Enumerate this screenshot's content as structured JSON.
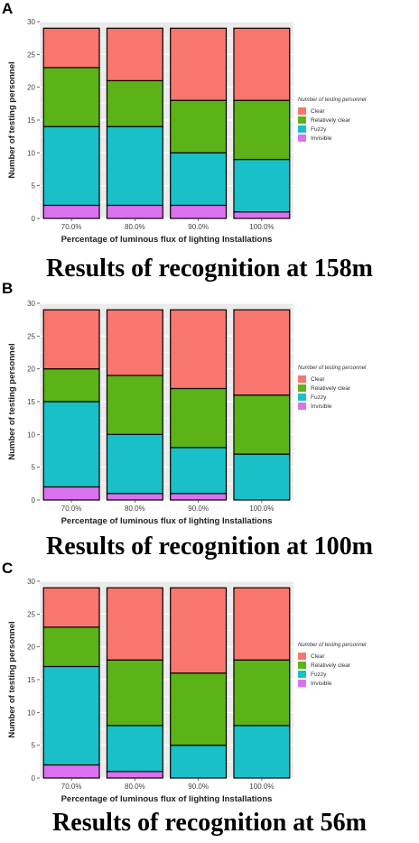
{
  "colors": {
    "Clear": "#f8766d",
    "Relatively clear": "#5bb318",
    "Fuzzy": "#19c0c8",
    "Invisible": "#dc71f0",
    "panel_bg": "#ebebeb",
    "grid": "#ffffff"
  },
  "chart_data": [
    {
      "type": "bar",
      "stacked": true,
      "panel_label": "A",
      "caption": "Results of recognition at 158m",
      "xlabel": "Percentage of luminous flux of lighting Installations",
      "ylabel": "Number of testing personnel",
      "legend_title": "Number of testing personnel",
      "legend_entries": [
        "Clear",
        "Relatively clear",
        "Fuzzy",
        "Invisible"
      ],
      "categories": [
        "70.0%",
        "80.0%",
        "90.0%",
        "100.0%"
      ],
      "yticks": [
        "0",
        "5",
        "10",
        "15",
        "20",
        "25",
        "30"
      ],
      "ylim": [
        0,
        30
      ],
      "series": [
        {
          "name": "Invisible",
          "values": [
            2,
            2,
            2,
            1
          ]
        },
        {
          "name": "Fuzzy",
          "values": [
            12,
            12,
            8,
            8
          ]
        },
        {
          "name": "Relatively clear",
          "values": [
            9,
            7,
            8,
            9
          ]
        },
        {
          "name": "Clear",
          "values": [
            6,
            8,
            11,
            11
          ]
        }
      ]
    },
    {
      "type": "bar",
      "stacked": true,
      "panel_label": "B",
      "caption": "Results of recognition at 100m",
      "xlabel": "Percentage of luminous flux of lighting Installations",
      "ylabel": "Number of testing personnel",
      "legend_title": "Number of testing personnel",
      "legend_entries": [
        "Clear",
        "Relatively clear",
        "Fuzzy",
        "Invisible"
      ],
      "categories": [
        "70.0%",
        "80.0%",
        "90.0%",
        "100.0%"
      ],
      "yticks": [
        "0",
        "5",
        "10",
        "15",
        "20",
        "25",
        "30"
      ],
      "ylim": [
        0,
        30
      ],
      "series": [
        {
          "name": "Invisible",
          "values": [
            2,
            1,
            1,
            0
          ]
        },
        {
          "name": "Fuzzy",
          "values": [
            13,
            9,
            7,
            7
          ]
        },
        {
          "name": "Relatively clear",
          "values": [
            5,
            9,
            9,
            9
          ]
        },
        {
          "name": "Clear",
          "values": [
            9,
            10,
            12,
            13
          ]
        }
      ]
    },
    {
      "type": "bar",
      "stacked": true,
      "panel_label": "C",
      "caption": "Results of recognition at 56m",
      "xlabel": "Percentage of luminous flux of lighting Installations",
      "ylabel": "Number of testing personnel",
      "legend_title": "Number of testing personnel",
      "legend_entries": [
        "Clear",
        "Relatively clear",
        "Fuzzy",
        "Invisible"
      ],
      "categories": [
        "70.0%",
        "80.0%",
        "90.0%",
        "100.0%"
      ],
      "yticks": [
        "0",
        "5",
        "10",
        "15",
        "20",
        "25",
        "30"
      ],
      "ylim": [
        0,
        30
      ],
      "series": [
        {
          "name": "Invisible",
          "values": [
            2,
            1,
            0,
            0
          ]
        },
        {
          "name": "Fuzzy",
          "values": [
            15,
            7,
            5,
            8
          ]
        },
        {
          "name": "Relatively clear",
          "values": [
            6,
            10,
            11,
            10
          ]
        },
        {
          "name": "Clear",
          "values": [
            6,
            11,
            13,
            11
          ]
        }
      ]
    }
  ]
}
